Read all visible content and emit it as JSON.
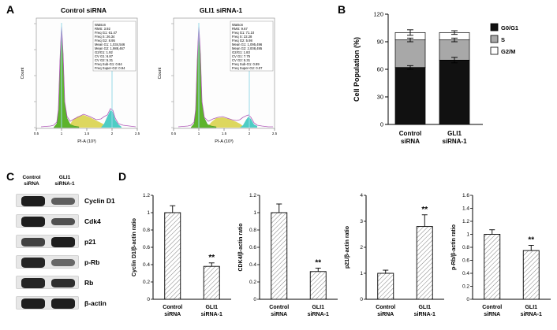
{
  "panel_labels": {
    "A": "A",
    "B": "B",
    "C": "C",
    "D": "D"
  },
  "panel_a": {
    "plots": [
      {
        "title": "Control siRNA",
        "xlabel": "PI-A (10³)",
        "ylabel": "Count",
        "xticks": [
          "0.5",
          "1",
          "1.5",
          "2",
          "2.5"
        ],
        "stats": [
          "Watson",
          "RMS: 3.92",
          "Freq G1: 61.47",
          "Freq S: 26.34",
          "Freq G2: 8.95",
          "Mean G1: 1,034,546",
          "Mean G2: 1,988,467",
          "G2/G1: 1.92",
          "CV G1: 6.87",
          "CV G2: 5.31",
          "Freq Sub-G1: 0.64",
          "Freq Super-G2: 0.94"
        ]
      },
      {
        "title": "GLI1 siRNA-1",
        "xlabel": "PI-A (10³)",
        "ylabel": "Count",
        "xticks": [
          "0.5",
          "1",
          "1.5",
          "2",
          "2.5"
        ],
        "stats": [
          "Watson",
          "RMS: 9.67",
          "Freq G1: 71.10",
          "Freq S: 22.28",
          "Freq G2: 5.98",
          "Mean G1: 1,095,496",
          "Mean G2: 2,008,495",
          "G2/G1: 1.83",
          "CV G1: 7.75",
          "CV G2: 5.31",
          "Freq Sub-G1: 0.89",
          "Freq Super-G2: 0.07"
        ]
      }
    ]
  },
  "panel_c": {
    "lanes": [
      [
        "Control",
        "siRNA"
      ],
      [
        "GLI1",
        "siRNA-1"
      ]
    ],
    "rows": [
      {
        "label": "Cyclin D1",
        "bands": [
          0.95,
          0.5
        ]
      },
      {
        "label": "Cdk4",
        "bands": [
          0.95,
          0.6
        ]
      },
      {
        "label": "p21",
        "bands": [
          0.7,
          0.95
        ]
      },
      {
        "label": "p-Rb",
        "bands": [
          0.9,
          0.45
        ]
      },
      {
        "label": "Rb",
        "bands": [
          0.9,
          0.85
        ]
      },
      {
        "label": "β-actin",
        "bands": [
          0.95,
          0.95
        ]
      }
    ]
  },
  "chart_data": [
    {
      "type": "stacked-bar",
      "ylabel": "Cell Population (%)",
      "ylim": [
        0,
        120
      ],
      "yticks": [
        0,
        30,
        60,
        90,
        120
      ],
      "ytick_labels": [
        "0",
        "30",
        "60",
        "90",
        "120"
      ],
      "categories": [
        [
          "Control",
          "siRNA"
        ],
        [
          "GLI1",
          "siRNA-1"
        ]
      ],
      "series": [
        {
          "name": "G0/G1",
          "color": "#111111",
          "values": [
            62,
            70
          ],
          "errors": [
            2,
            3
          ]
        },
        {
          "name": "S",
          "color": "#a8a8a8",
          "values": [
            30,
            22
          ],
          "errors": [
            2,
            2
          ]
        },
        {
          "name": "G2/M",
          "color": "#ffffff",
          "values": [
            8,
            8
          ],
          "errors": [
            3,
            2
          ]
        }
      ],
      "legend_position": "right"
    },
    {
      "type": "bar",
      "ylabel": "Cyclin D1/β-actin ratio",
      "ylim": [
        0,
        1.2
      ],
      "yticks": [
        0,
        0.2,
        0.4,
        0.6,
        0.8,
        1.0,
        1.2
      ],
      "ytick_labels": [
        "0",
        "0.2",
        "0.4",
        "0.6",
        "0.8",
        "1",
        "1.2"
      ],
      "categories": [
        [
          "Control",
          "siRNA"
        ],
        [
          "GLI1",
          "siRNA-1"
        ]
      ],
      "values": [
        1.0,
        0.38
      ],
      "errors": [
        0.08,
        0.04
      ],
      "sig": [
        "",
        "**"
      ]
    },
    {
      "type": "bar",
      "ylabel": "CDK4/β-actin ratio",
      "ylim": [
        0,
        1.2
      ],
      "yticks": [
        0,
        0.2,
        0.4,
        0.6,
        0.8,
        1.0,
        1.2
      ],
      "ytick_labels": [
        "0",
        "0.2",
        "0.4",
        "0.6",
        "0.8",
        "1",
        "1.2"
      ],
      "categories": [
        [
          "Control",
          "siRNA"
        ],
        [
          "GLI1",
          "siRNA-1"
        ]
      ],
      "values": [
        1.0,
        0.32
      ],
      "errors": [
        0.1,
        0.04
      ],
      "sig": [
        "",
        "**"
      ]
    },
    {
      "type": "bar",
      "ylabel": "p21/β-actin ratio",
      "ylim": [
        0,
        4
      ],
      "yticks": [
        0,
        1,
        2,
        3,
        4
      ],
      "ytick_labels": [
        "0",
        "1",
        "2",
        "3",
        "4"
      ],
      "categories": [
        [
          "Control",
          "siRNA"
        ],
        [
          "GLI1",
          "siRNA-1"
        ]
      ],
      "values": [
        1.0,
        2.8
      ],
      "errors": [
        0.12,
        0.45
      ],
      "sig": [
        "",
        "**"
      ]
    },
    {
      "type": "bar",
      "ylabel": "p-Rb/β-actin ratio",
      "ylim": [
        0,
        1.6
      ],
      "yticks": [
        0,
        0.2,
        0.4,
        0.6,
        0.8,
        1.0,
        1.2,
        1.4,
        1.6
      ],
      "ytick_labels": [
        "0",
        "0.2",
        "0.4",
        "0.6",
        "0.8",
        "1",
        "1.2",
        "1.4",
        "1.6"
      ],
      "categories": [
        [
          "Control",
          "siRNA"
        ],
        [
          "GLI1",
          "siRNA-1"
        ]
      ],
      "values": [
        1.0,
        0.75
      ],
      "errors": [
        0.07,
        0.08
      ],
      "sig": [
        "",
        "**"
      ]
    }
  ]
}
